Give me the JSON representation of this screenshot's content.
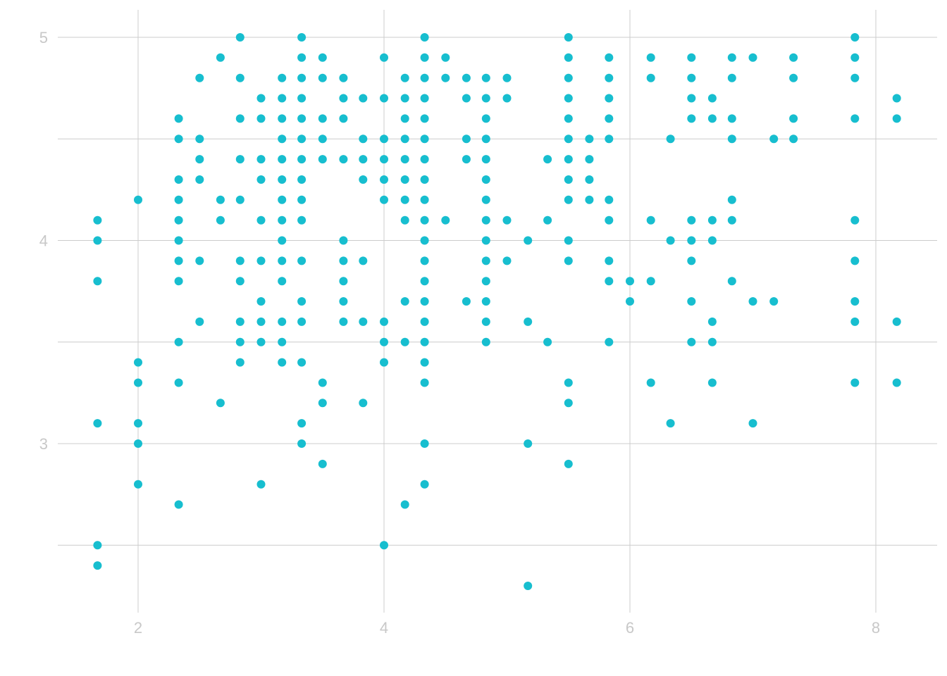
{
  "chart_data": {
    "type": "scatter",
    "title": "",
    "xlabel": "",
    "ylabel": "",
    "xlim": [
      1.3,
      8.4
    ],
    "ylim": [
      2.2,
      5.13
    ],
    "grid": true,
    "x_ticks": [
      2,
      4,
      6,
      8
    ],
    "y_ticks": [
      3,
      4,
      5
    ],
    "x_minor_gridlines": [],
    "y_minor_gridlines": [
      2.5,
      3.5,
      4.5
    ],
    "colors": {
      "points": "#17BECF",
      "grid": "#cccccc",
      "tick_text": "#c8c8c8"
    },
    "points": [
      [
        1.67,
        4.1
      ],
      [
        1.67,
        4.0
      ],
      [
        1.67,
        3.8
      ],
      [
        1.67,
        3.1
      ],
      [
        1.67,
        2.5
      ],
      [
        1.67,
        2.4
      ],
      [
        2.0,
        4.2
      ],
      [
        2.0,
        3.4
      ],
      [
        2.0,
        3.3
      ],
      [
        2.0,
        3.1
      ],
      [
        2.0,
        3.0
      ],
      [
        2.0,
        2.8
      ],
      [
        2.33,
        4.6
      ],
      [
        2.33,
        4.5
      ],
      [
        2.33,
        4.3
      ],
      [
        2.33,
        4.2
      ],
      [
        2.33,
        4.1
      ],
      [
        2.33,
        4.0
      ],
      [
        2.33,
        3.9
      ],
      [
        2.33,
        3.8
      ],
      [
        2.33,
        3.5
      ],
      [
        2.33,
        3.3
      ],
      [
        2.33,
        2.7
      ],
      [
        2.5,
        4.8
      ],
      [
        2.5,
        4.5
      ],
      [
        2.5,
        4.4
      ],
      [
        2.5,
        4.3
      ],
      [
        2.5,
        3.9
      ],
      [
        2.5,
        3.6
      ],
      [
        2.67,
        4.9
      ],
      [
        2.67,
        4.2
      ],
      [
        2.67,
        4.1
      ],
      [
        2.67,
        3.2
      ],
      [
        2.83,
        5.0
      ],
      [
        2.83,
        4.8
      ],
      [
        2.83,
        4.6
      ],
      [
        2.83,
        4.4
      ],
      [
        2.83,
        4.2
      ],
      [
        2.83,
        3.9
      ],
      [
        2.83,
        3.8
      ],
      [
        2.83,
        3.6
      ],
      [
        2.83,
        3.5
      ],
      [
        2.83,
        3.4
      ],
      [
        3.0,
        4.7
      ],
      [
        3.0,
        4.6
      ],
      [
        3.0,
        4.4
      ],
      [
        3.0,
        4.3
      ],
      [
        3.0,
        4.1
      ],
      [
        3.0,
        3.9
      ],
      [
        3.0,
        3.7
      ],
      [
        3.0,
        3.6
      ],
      [
        3.0,
        3.5
      ],
      [
        3.0,
        2.8
      ],
      [
        3.17,
        4.8
      ],
      [
        3.17,
        4.7
      ],
      [
        3.17,
        4.6
      ],
      [
        3.17,
        4.5
      ],
      [
        3.17,
        4.4
      ],
      [
        3.17,
        4.3
      ],
      [
        3.17,
        4.2
      ],
      [
        3.17,
        4.1
      ],
      [
        3.17,
        4.0
      ],
      [
        3.17,
        3.9
      ],
      [
        3.17,
        3.8
      ],
      [
        3.17,
        3.6
      ],
      [
        3.17,
        3.5
      ],
      [
        3.17,
        3.4
      ],
      [
        3.33,
        5.0
      ],
      [
        3.33,
        4.9
      ],
      [
        3.33,
        4.8
      ],
      [
        3.33,
        4.7
      ],
      [
        3.33,
        4.6
      ],
      [
        3.33,
        4.5
      ],
      [
        3.33,
        4.4
      ],
      [
        3.33,
        4.3
      ],
      [
        3.33,
        4.2
      ],
      [
        3.33,
        4.1
      ],
      [
        3.33,
        3.9
      ],
      [
        3.33,
        3.7
      ],
      [
        3.33,
        3.6
      ],
      [
        3.33,
        3.4
      ],
      [
        3.33,
        3.1
      ],
      [
        3.33,
        3.0
      ],
      [
        3.5,
        4.9
      ],
      [
        3.5,
        4.8
      ],
      [
        3.5,
        4.6
      ],
      [
        3.5,
        4.5
      ],
      [
        3.5,
        4.4
      ],
      [
        3.5,
        3.3
      ],
      [
        3.5,
        3.2
      ],
      [
        3.5,
        2.9
      ],
      [
        3.67,
        4.8
      ],
      [
        3.67,
        4.7
      ],
      [
        3.67,
        4.6
      ],
      [
        3.67,
        4.4
      ],
      [
        3.67,
        4.0
      ],
      [
        3.67,
        3.9
      ],
      [
        3.67,
        3.8
      ],
      [
        3.67,
        3.7
      ],
      [
        3.67,
        3.6
      ],
      [
        3.83,
        4.7
      ],
      [
        3.83,
        4.5
      ],
      [
        3.83,
        4.4
      ],
      [
        3.83,
        4.3
      ],
      [
        3.83,
        3.9
      ],
      [
        3.83,
        3.6
      ],
      [
        3.83,
        3.2
      ],
      [
        4.0,
        4.9
      ],
      [
        4.0,
        4.7
      ],
      [
        4.0,
        4.5
      ],
      [
        4.0,
        4.4
      ],
      [
        4.0,
        4.3
      ],
      [
        4.0,
        4.2
      ],
      [
        4.0,
        3.6
      ],
      [
        4.0,
        3.5
      ],
      [
        4.0,
        3.4
      ],
      [
        4.0,
        2.5
      ],
      [
        4.17,
        4.8
      ],
      [
        4.17,
        4.7
      ],
      [
        4.17,
        4.6
      ],
      [
        4.17,
        4.5
      ],
      [
        4.17,
        4.4
      ],
      [
        4.17,
        4.3
      ],
      [
        4.17,
        4.2
      ],
      [
        4.17,
        4.1
      ],
      [
        4.17,
        3.7
      ],
      [
        4.17,
        3.5
      ],
      [
        4.17,
        2.7
      ],
      [
        4.33,
        5.0
      ],
      [
        4.33,
        4.9
      ],
      [
        4.33,
        4.8
      ],
      [
        4.33,
        4.7
      ],
      [
        4.33,
        4.6
      ],
      [
        4.33,
        4.5
      ],
      [
        4.33,
        4.4
      ],
      [
        4.33,
        4.3
      ],
      [
        4.33,
        4.2
      ],
      [
        4.33,
        4.1
      ],
      [
        4.33,
        4.0
      ],
      [
        4.33,
        3.9
      ],
      [
        4.33,
        3.8
      ],
      [
        4.33,
        3.7
      ],
      [
        4.33,
        3.6
      ],
      [
        4.33,
        3.5
      ],
      [
        4.33,
        3.4
      ],
      [
        4.33,
        3.3
      ],
      [
        4.33,
        3.0
      ],
      [
        4.33,
        2.8
      ],
      [
        4.5,
        4.9
      ],
      [
        4.5,
        4.8
      ],
      [
        4.5,
        4.1
      ],
      [
        4.67,
        4.8
      ],
      [
        4.67,
        4.7
      ],
      [
        4.67,
        4.5
      ],
      [
        4.67,
        4.4
      ],
      [
        4.67,
        3.7
      ],
      [
        4.83,
        4.8
      ],
      [
        4.83,
        4.7
      ],
      [
        4.83,
        4.6
      ],
      [
        4.83,
        4.5
      ],
      [
        4.83,
        4.4
      ],
      [
        4.83,
        4.3
      ],
      [
        4.83,
        4.2
      ],
      [
        4.83,
        4.1
      ],
      [
        4.83,
        4.0
      ],
      [
        4.83,
        3.9
      ],
      [
        4.83,
        3.8
      ],
      [
        4.83,
        3.7
      ],
      [
        4.83,
        3.6
      ],
      [
        4.83,
        3.5
      ],
      [
        5.0,
        4.8
      ],
      [
        5.0,
        4.7
      ],
      [
        5.0,
        4.1
      ],
      [
        5.0,
        3.9
      ],
      [
        5.17,
        4.0
      ],
      [
        5.17,
        3.6
      ],
      [
        5.17,
        3.0
      ],
      [
        5.17,
        2.3
      ],
      [
        5.33,
        4.4
      ],
      [
        5.33,
        4.1
      ],
      [
        5.33,
        3.5
      ],
      [
        5.5,
        5.0
      ],
      [
        5.5,
        4.9
      ],
      [
        5.5,
        4.8
      ],
      [
        5.5,
        4.7
      ],
      [
        5.5,
        4.6
      ],
      [
        5.5,
        4.5
      ],
      [
        5.5,
        4.4
      ],
      [
        5.5,
        4.3
      ],
      [
        5.5,
        4.2
      ],
      [
        5.5,
        4.0
      ],
      [
        5.5,
        3.9
      ],
      [
        5.5,
        3.3
      ],
      [
        5.5,
        3.2
      ],
      [
        5.5,
        2.9
      ],
      [
        5.67,
        4.5
      ],
      [
        5.67,
        4.4
      ],
      [
        5.67,
        4.3
      ],
      [
        5.67,
        4.2
      ],
      [
        5.83,
        4.9
      ],
      [
        5.83,
        4.8
      ],
      [
        5.83,
        4.7
      ],
      [
        5.83,
        4.6
      ],
      [
        5.83,
        4.5
      ],
      [
        5.83,
        4.2
      ],
      [
        5.83,
        4.1
      ],
      [
        5.83,
        3.9
      ],
      [
        5.83,
        3.8
      ],
      [
        5.83,
        3.5
      ],
      [
        6.0,
        3.8
      ],
      [
        6.0,
        3.7
      ],
      [
        6.17,
        4.9
      ],
      [
        6.17,
        4.8
      ],
      [
        6.17,
        4.1
      ],
      [
        6.17,
        3.8
      ],
      [
        6.17,
        3.3
      ],
      [
        6.33,
        4.5
      ],
      [
        6.33,
        4.0
      ],
      [
        6.33,
        3.1
      ],
      [
        6.5,
        4.9
      ],
      [
        6.5,
        4.8
      ],
      [
        6.5,
        4.7
      ],
      [
        6.5,
        4.6
      ],
      [
        6.5,
        4.1
      ],
      [
        6.5,
        4.0
      ],
      [
        6.5,
        3.9
      ],
      [
        6.5,
        3.7
      ],
      [
        6.5,
        3.5
      ],
      [
        6.67,
        4.7
      ],
      [
        6.67,
        4.6
      ],
      [
        6.67,
        4.1
      ],
      [
        6.67,
        4.0
      ],
      [
        6.67,
        3.6
      ],
      [
        6.67,
        3.5
      ],
      [
        6.67,
        3.3
      ],
      [
        6.83,
        4.9
      ],
      [
        6.83,
        4.8
      ],
      [
        6.83,
        4.6
      ],
      [
        6.83,
        4.5
      ],
      [
        6.83,
        4.2
      ],
      [
        6.83,
        4.1
      ],
      [
        6.83,
        3.8
      ],
      [
        7.0,
        4.9
      ],
      [
        7.0,
        3.7
      ],
      [
        7.0,
        3.1
      ],
      [
        7.17,
        4.5
      ],
      [
        7.17,
        3.7
      ],
      [
        7.33,
        4.9
      ],
      [
        7.33,
        4.8
      ],
      [
        7.33,
        4.6
      ],
      [
        7.33,
        4.5
      ],
      [
        7.83,
        5.0
      ],
      [
        7.83,
        4.9
      ],
      [
        7.83,
        4.8
      ],
      [
        7.83,
        4.6
      ],
      [
        7.83,
        4.1
      ],
      [
        7.83,
        3.9
      ],
      [
        7.83,
        3.7
      ],
      [
        7.83,
        3.6
      ],
      [
        7.83,
        3.3
      ],
      [
        8.17,
        4.7
      ],
      [
        8.17,
        4.6
      ],
      [
        8.17,
        3.6
      ],
      [
        8.17,
        3.3
      ]
    ]
  }
}
